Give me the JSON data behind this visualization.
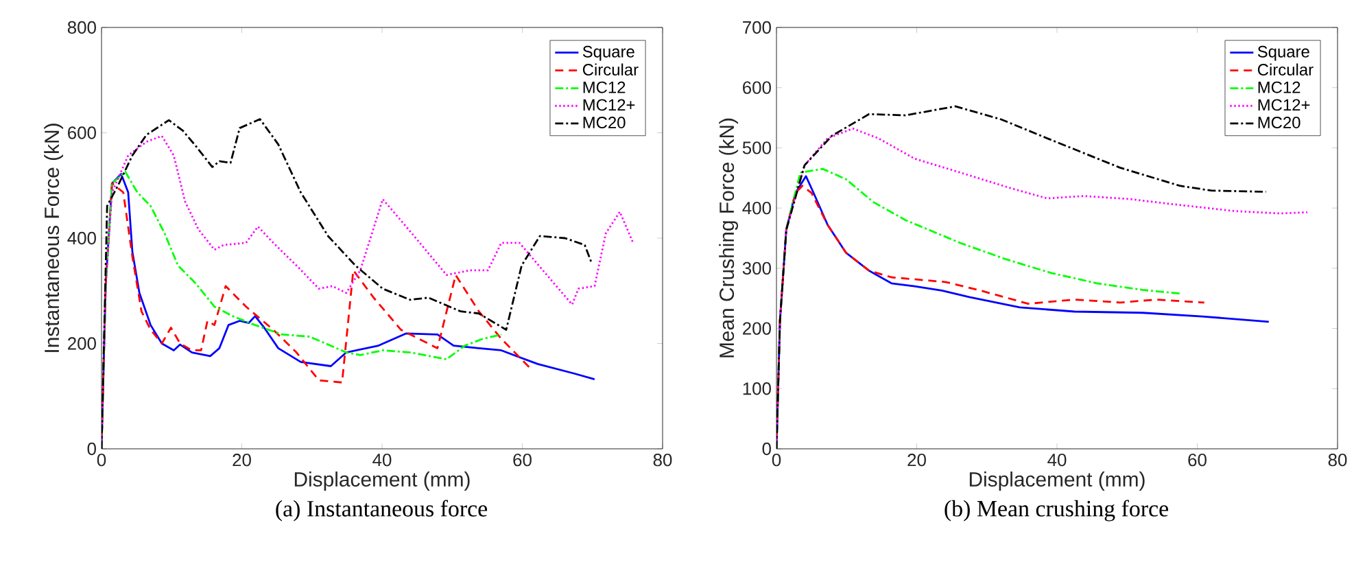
{
  "chart_data": [
    {
      "type": "line",
      "xlabel": "Displacement (mm)",
      "ylabel": "Instantaneous Force (kN)",
      "annotations": [
        "(a) Instantaneous force"
      ],
      "xlim": [
        0,
        80
      ],
      "xticks": [
        0,
        20,
        40,
        60,
        80
      ],
      "ylim": [
        0,
        800
      ],
      "yticks": [
        0,
        200,
        400,
        600,
        800
      ],
      "legend": "top right",
      "series": [
        {
          "name": "Square",
          "color": "#0000ff",
          "line_style": "solid",
          "x": [
            0,
            0.6,
            1.5,
            2.8,
            3.8,
            4.4,
            5.4,
            7,
            8.6,
            10.3,
            11.2,
            12.9,
            15.5,
            16.8,
            18.1,
            19.7,
            21,
            21.9,
            23.2,
            25.2,
            28.4,
            32.7,
            34.9,
            39.5,
            43.4,
            47.9,
            50.2,
            53.8,
            57,
            62.2,
            67.4,
            70.3
          ],
          "values": [
            0,
            313,
            504,
            522,
            487,
            374,
            296,
            235,
            200,
            187,
            198,
            183,
            176,
            191,
            235,
            243,
            239,
            252,
            230,
            191,
            165,
            157,
            183,
            196,
            219,
            217,
            196,
            191,
            187,
            161,
            143,
            132
          ]
        },
        {
          "name": "Circular",
          "color": "#ff0000",
          "line_style": "dashed",
          "x": [
            0,
            0.6,
            1.5,
            3.1,
            4.4,
            5.7,
            7,
            8.6,
            9.9,
            11.2,
            12.9,
            14.2,
            15.1,
            16.1,
            17.7,
            20.6,
            24.5,
            27.8,
            31,
            34.3,
            35.9,
            38.8,
            42.7,
            47.9,
            50.5,
            53.8,
            57,
            61.2
          ],
          "values": [
            0,
            313,
            504,
            487,
            365,
            261,
            226,
            200,
            230,
            200,
            187,
            187,
            243,
            235,
            309,
            270,
            226,
            183,
            130,
            126,
            339,
            287,
            226,
            191,
            330,
            261,
            209,
            152
          ]
        },
        {
          "name": "MC12",
          "color": "#00ff00",
          "line_style": "dashdot",
          "x": [
            0,
            0.6,
            1.5,
            3.4,
            5.1,
            7,
            9,
            10.9,
            13.5,
            16.1,
            18.7,
            21.9,
            25.8,
            29.7,
            34.9,
            36.9,
            40.1,
            44,
            49.2,
            51.8,
            54.4,
            57
          ],
          "values": [
            0,
            313,
            504,
            526,
            487,
            461,
            409,
            348,
            313,
            270,
            252,
            235,
            217,
            213,
            183,
            178,
            187,
            183,
            170,
            196,
            209,
            217
          ]
        },
        {
          "name": "MC12+",
          "color": "#ff00ff",
          "line_style": "dotted",
          "x": [
            0,
            0.6,
            1.5,
            3.8,
            6.4,
            8.6,
            10.3,
            11.9,
            13.8,
            16.1,
            17.4,
            20.6,
            22.3,
            24.5,
            27.8,
            31,
            32.9,
            34.9,
            36.9,
            40.1,
            44,
            49.2,
            52.5,
            55.1,
            57,
            59.6,
            63.5,
            67.1,
            68,
            70.3,
            71.9,
            73.9,
            75.8
          ],
          "values": [
            0,
            313,
            487,
            557,
            583,
            594,
            557,
            470,
            417,
            378,
            387,
            391,
            422,
            391,
            348,
            304,
            309,
            296,
            339,
            474,
            413,
            330,
            339,
            339,
            391,
            391,
            330,
            274,
            304,
            309,
            409,
            450,
            391
          ]
        },
        {
          "name": "MC20",
          "color": "#000000",
          "line_style": "dashdot",
          "x": [
            0,
            0.8,
            2.5,
            4.4,
            6.4,
            9.6,
            11.6,
            13.5,
            15.8,
            16.8,
            18.4,
            19.7,
            22.6,
            25.2,
            28.4,
            32.3,
            36.2,
            40.1,
            44,
            46.6,
            51.2,
            53.8,
            57.7,
            59.9,
            62.5,
            66.1,
            68.9,
            69.9
          ],
          "values": [
            0,
            461,
            504,
            557,
            596,
            624,
            604,
            574,
            535,
            546,
            543,
            609,
            626,
            578,
            487,
            404,
            348,
            304,
            283,
            287,
            261,
            257,
            226,
            348,
            404,
            400,
            387,
            352
          ]
        }
      ]
    },
    {
      "type": "line",
      "xlabel": "Displacement (mm)",
      "ylabel": "Mean Crushing Force (kN)",
      "annotations": [
        "(b) Mean crushing force"
      ],
      "xlim": [
        0,
        80
      ],
      "xticks": [
        0,
        20,
        40,
        60,
        80
      ],
      "ylim": [
        0,
        700
      ],
      "yticks": [
        0,
        100,
        200,
        300,
        400,
        500,
        600,
        700
      ],
      "legend": "top right",
      "series": [
        {
          "name": "Square",
          "color": "#0000ff",
          "line_style": "solid",
          "x": [
            0,
            0.5,
            1.4,
            2.7,
            4.2,
            5.3,
            7.3,
            9.9,
            13.2,
            16.4,
            19.7,
            23.6,
            27.5,
            34.7,
            42.5,
            52.2,
            60.7,
            70.2
          ],
          "values": [
            0,
            213,
            364,
            425,
            453,
            425,
            372,
            326,
            296,
            275,
            270,
            263,
            252,
            235,
            228,
            226,
            220,
            211
          ]
        },
        {
          "name": "Circular",
          "color": "#ff0000",
          "line_style": "dashed",
          "x": [
            0,
            0.5,
            1.4,
            2.7,
            3.7,
            5,
            7.3,
            9.9,
            13.2,
            16.4,
            24.2,
            29.4,
            35.9,
            42.5,
            49,
            54.2,
            61
          ],
          "values": [
            0,
            213,
            364,
            425,
            437,
            425,
            372,
            326,
            296,
            285,
            277,
            262,
            241,
            248,
            243,
            248,
            243
          ]
        },
        {
          "name": "MC12",
          "color": "#00ff00",
          "line_style": "dashdot",
          "x": [
            0,
            0.5,
            1.4,
            3.4,
            6.6,
            9.9,
            13.8,
            18.4,
            26.2,
            32.7,
            39.2,
            45.7,
            52.2,
            57.5
          ],
          "values": [
            0,
            213,
            364,
            459,
            465,
            448,
            410,
            380,
            342,
            315,
            292,
            275,
            264,
            258
          ]
        },
        {
          "name": "MC12+",
          "color": "#ff00ff",
          "line_style": "dotted",
          "x": [
            0,
            0.5,
            1.4,
            4,
            7.3,
            10.9,
            14.5,
            19.7,
            26.2,
            33.4,
            38.6,
            43.8,
            50.3,
            56.8,
            65.3,
            71.8,
            75.7
          ],
          "values": [
            0,
            213,
            364,
            471,
            516,
            532,
            516,
            482,
            459,
            433,
            416,
            420,
            415,
            406,
            395,
            391,
            393
          ]
        },
        {
          "name": "MC20",
          "color": "#000000",
          "line_style": "dashdot",
          "x": [
            0,
            0.5,
            1.4,
            4,
            7.9,
            13.2,
            18.4,
            25.5,
            32.1,
            39.2,
            49,
            57.5,
            62,
            69.8
          ],
          "values": [
            0,
            213,
            364,
            471,
            520,
            556,
            554,
            569,
            547,
            513,
            467,
            437,
            429,
            427
          ]
        }
      ]
    }
  ]
}
